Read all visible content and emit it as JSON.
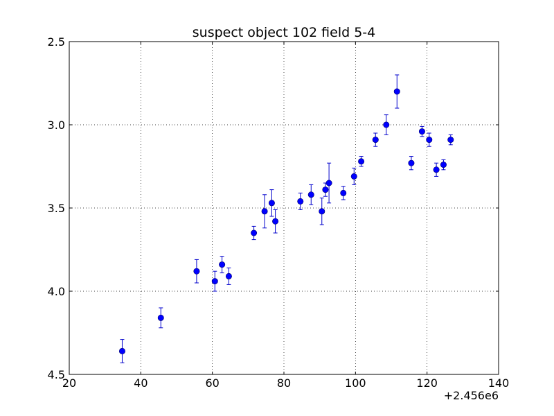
{
  "chart_data": {
    "type": "scatter",
    "title": "suspect object 102 field 5-4",
    "xlabel": "",
    "ylabel": "",
    "x_offset_label": "+2.456e6",
    "xlim": [
      20,
      140
    ],
    "ylim": [
      2.5,
      4.5
    ],
    "y_inverted": true,
    "grid": true,
    "x_ticks": [
      "20",
      "40",
      "60",
      "80",
      "100",
      "120",
      "140"
    ],
    "y_ticks": [
      "2.5",
      "3.0",
      "3.5",
      "4.0",
      "4.5"
    ],
    "marker_color": "#0000ff",
    "errorbar_color": "#0000cc",
    "series": [
      {
        "points": [
          {
            "x": 34.8,
            "y": 4.36,
            "err": 0.07
          },
          {
            "x": 45.6,
            "y": 4.16,
            "err": 0.06
          },
          {
            "x": 55.6,
            "y": 3.88,
            "err": 0.07
          },
          {
            "x": 60.7,
            "y": 3.94,
            "err": 0.06
          },
          {
            "x": 62.7,
            "y": 3.84,
            "err": 0.05
          },
          {
            "x": 64.6,
            "y": 3.91,
            "err": 0.05
          },
          {
            "x": 71.6,
            "y": 3.65,
            "err": 0.04
          },
          {
            "x": 74.6,
            "y": 3.52,
            "err": 0.1
          },
          {
            "x": 76.6,
            "y": 3.47,
            "err": 0.08
          },
          {
            "x": 77.6,
            "y": 3.58,
            "err": 0.07
          },
          {
            "x": 84.6,
            "y": 3.46,
            "err": 0.05
          },
          {
            "x": 87.6,
            "y": 3.42,
            "err": 0.06
          },
          {
            "x": 90.6,
            "y": 3.52,
            "err": 0.08
          },
          {
            "x": 91.6,
            "y": 3.39,
            "err": 0.04
          },
          {
            "x": 92.6,
            "y": 3.35,
            "err": 0.12
          },
          {
            "x": 96.6,
            "y": 3.41,
            "err": 0.04
          },
          {
            "x": 99.6,
            "y": 3.31,
            "err": 0.05
          },
          {
            "x": 101.6,
            "y": 3.22,
            "err": 0.03
          },
          {
            "x": 105.6,
            "y": 3.09,
            "err": 0.04
          },
          {
            "x": 108.6,
            "y": 3.0,
            "err": 0.06
          },
          {
            "x": 111.6,
            "y": 2.8,
            "err": 0.1
          },
          {
            "x": 115.6,
            "y": 3.23,
            "err": 0.04
          },
          {
            "x": 118.6,
            "y": 3.04,
            "err": 0.03
          },
          {
            "x": 120.6,
            "y": 3.09,
            "err": 0.04
          },
          {
            "x": 122.6,
            "y": 3.27,
            "err": 0.04
          },
          {
            "x": 124.6,
            "y": 3.24,
            "err": 0.03
          },
          {
            "x": 126.6,
            "y": 3.09,
            "err": 0.03
          }
        ]
      }
    ]
  }
}
